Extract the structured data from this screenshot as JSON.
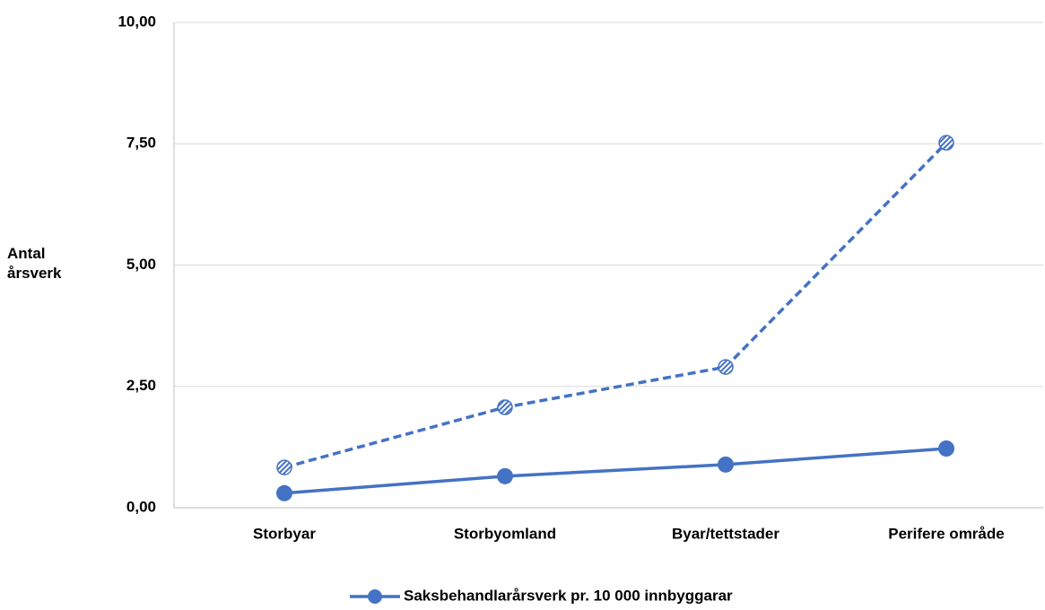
{
  "chart_data": {
    "type": "line",
    "y_label": "Antal årsverk",
    "categories": [
      "Storbyar",
      "Storbyomland",
      "Byar/tettstader",
      "Perifere område"
    ],
    "series": [
      {
        "name": "Saksbehandlarårsverk pr. 10 000 innbyggarar",
        "color": "#4472c4",
        "dash": false,
        "values": [
          0.3,
          0.65,
          0.89,
          1.22
        ]
      },
      {
        "color": "#4472c4",
        "dash": true,
        "values": [
          0.83,
          2.07,
          2.9,
          7.52
        ]
      }
    ],
    "ylim": [
      0,
      10
    ],
    "yticks": [
      {
        "value": 0,
        "label": "0,00"
      },
      {
        "value": 2.5,
        "label": "2,50"
      },
      {
        "value": 5,
        "label": "5,00"
      },
      {
        "value": 7.5,
        "label": "7,50"
      },
      {
        "value": 10,
        "label": "10,00"
      }
    ],
    "grid": true,
    "legend": "bottom"
  }
}
